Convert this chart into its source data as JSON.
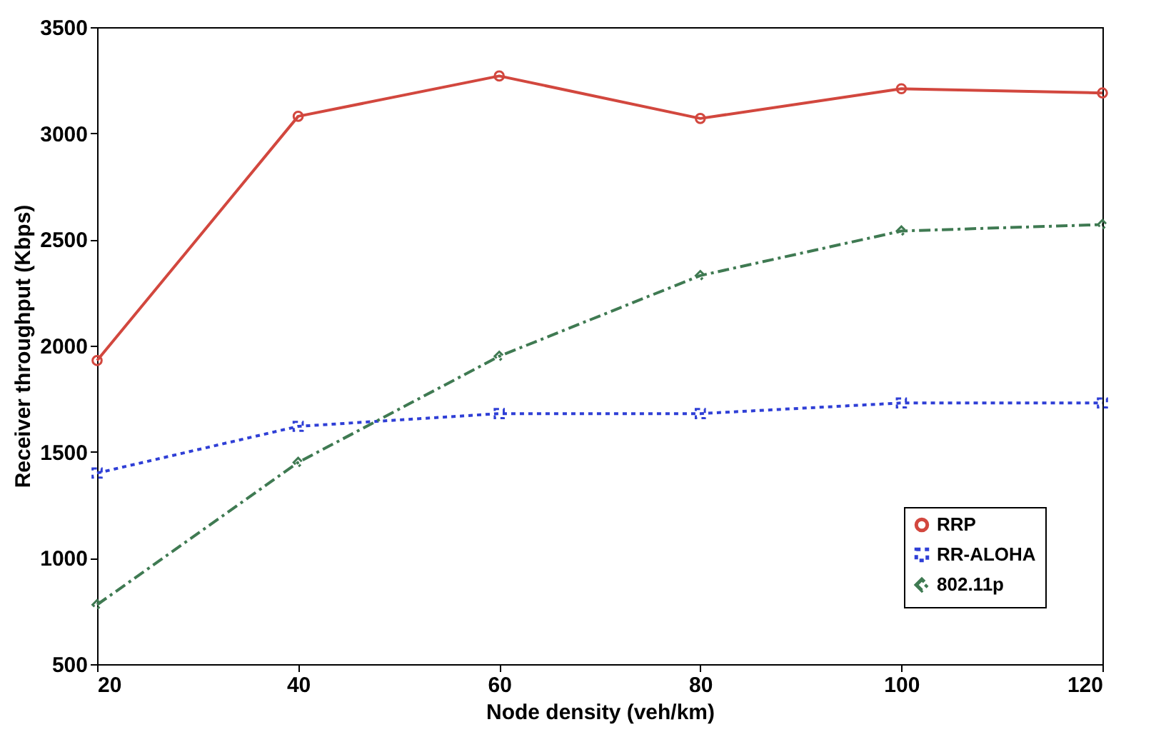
{
  "chart_data": {
    "type": "line",
    "xlabel": "Node density (veh/km)",
    "ylabel": "Receiver throughput (Kbps)",
    "x": [
      20,
      40,
      60,
      80,
      100,
      120
    ],
    "series": [
      {
        "name": "RRP",
        "color": "#d2473e",
        "marker": "circle",
        "line_style": "solid",
        "values": [
          1930,
          3080,
          3270,
          3070,
          3210,
          3190
        ]
      },
      {
        "name": "RR-ALOHA",
        "color": "#2f3fd6",
        "marker": "square",
        "line_style": "dotted",
        "values": [
          1400,
          1620,
          1680,
          1680,
          1730,
          1730
        ]
      },
      {
        "name": "802.11p",
        "color": "#3f7a52",
        "marker": "diamond",
        "line_style": "dashed",
        "values": [
          780,
          1450,
          1950,
          2330,
          2540,
          2570
        ]
      }
    ],
    "xlim": [
      20,
      120
    ],
    "xticks": [
      20,
      40,
      60,
      80,
      100,
      120
    ],
    "ylim": [
      500,
      3500
    ],
    "yticks": [
      500,
      1000,
      1500,
      2000,
      2500,
      3000,
      3500
    ],
    "grid": false,
    "legend": "bottom right"
  }
}
